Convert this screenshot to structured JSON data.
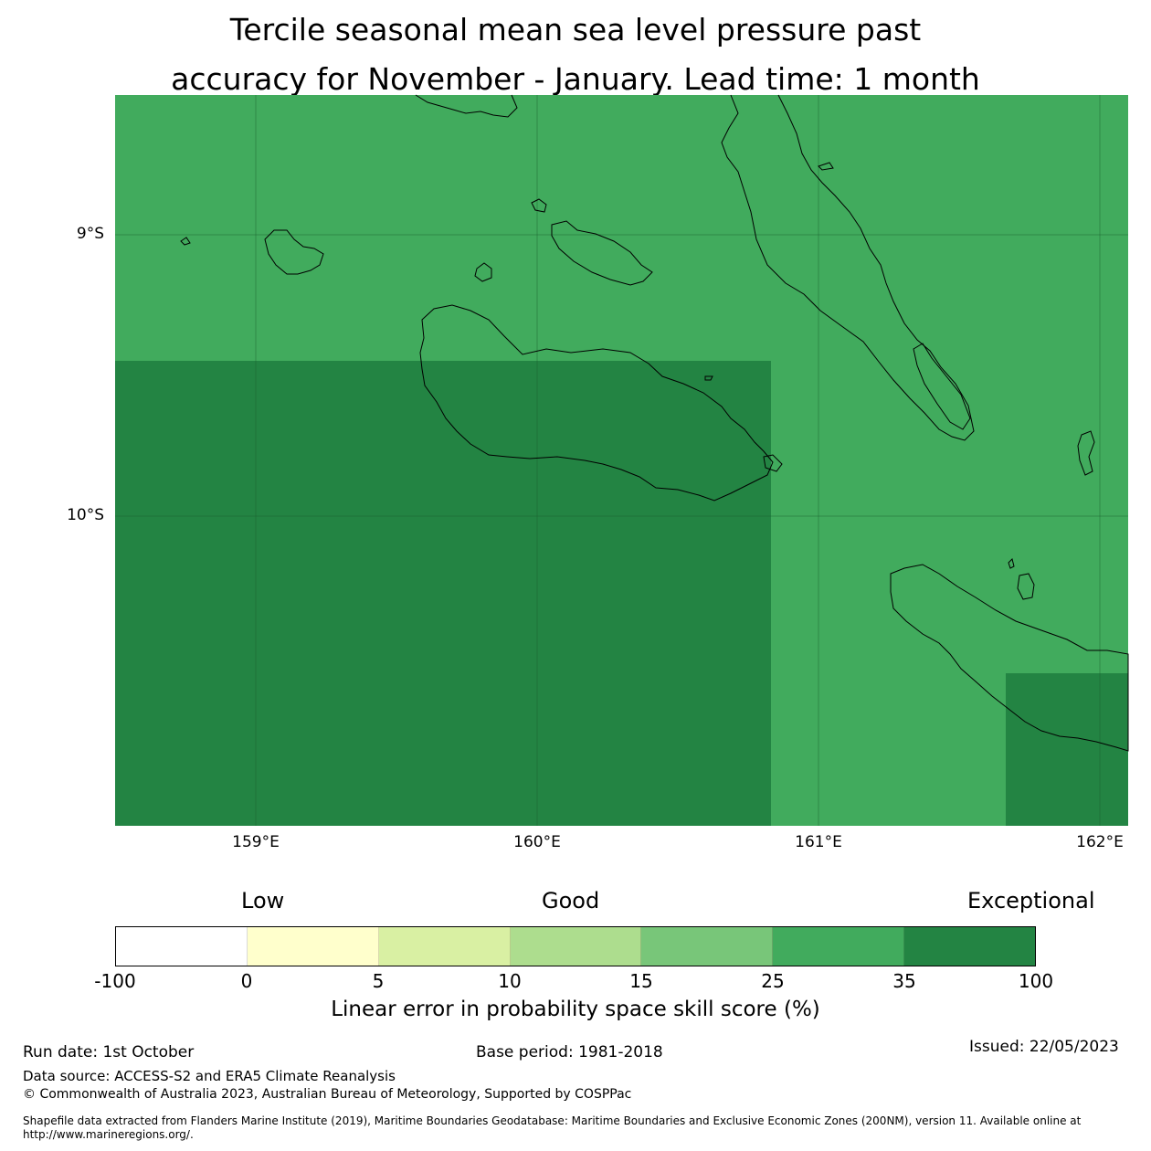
{
  "title": {
    "line1": "Tercile seasonal mean sea level pressure past",
    "line2": "accuracy for November - January. Lead time: 1 month"
  },
  "map": {
    "lat_labels": [
      "9°S",
      "10°S"
    ],
    "lon_labels": [
      "159°E",
      "160°E",
      "161°E",
      "162°E"
    ],
    "skill_categories": {
      "background": "25 to 35",
      "southwest_block": "35 to 100",
      "southeast_block": "35 to 100"
    },
    "coastline_color": "#000000",
    "icons": [
      "coastline-outline"
    ]
  },
  "colorbar": {
    "descriptors": [
      "Low",
      "Good",
      "Exceptional"
    ],
    "ticks": [
      "-100",
      "0",
      "5",
      "10",
      "15",
      "25",
      "35",
      "100"
    ],
    "colors": [
      "#ffffff",
      "#ffffcc",
      "#d9f0a3",
      "#addd8e",
      "#78c679",
      "#41ab5d",
      "#238443"
    ],
    "label": "Linear error in probability space skill score (%)"
  },
  "footer": {
    "run_date": "Run date: 1st October",
    "base_period": "Base period: 1981-2018",
    "issued": "Issued: 22/05/2023",
    "data_source": "Data source: ACCESS-S2 and ERA5 Climate Reanalysis",
    "copyright": "© Commonwealth of Australia 2023, Australian Bureau of Meteorology, Supported by COSPPac",
    "shapefile": "Shapefile data extracted from Flanders Marine Institute (2019), Maritime Boundaries Geodatabase: Maritime Boundaries and Exclusive Economic Zones (200NM), version 11. Available online at http://www.marineregions.org/."
  }
}
